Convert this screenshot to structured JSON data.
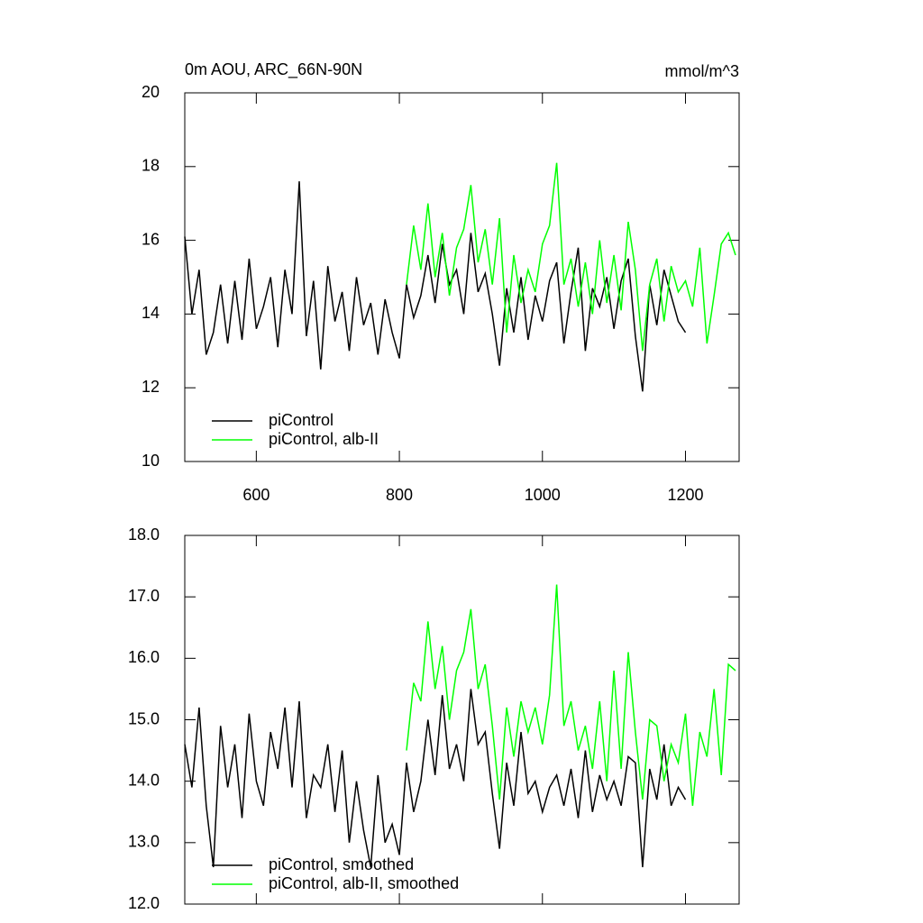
{
  "chart_data": [
    {
      "type": "line",
      "title": "0m AOU, ARC_66N-90N",
      "units": "mmol/m^3",
      "x": [
        500,
        510,
        520,
        530,
        540,
        550,
        560,
        570,
        580,
        590,
        600,
        610,
        620,
        630,
        640,
        650,
        660,
        670,
        680,
        690,
        700,
        710,
        720,
        730,
        740,
        750,
        760,
        770,
        780,
        790,
        800,
        810,
        820,
        830,
        840,
        850,
        860,
        870,
        880,
        890,
        900,
        910,
        920,
        930,
        940,
        950,
        960,
        970,
        980,
        990,
        1000,
        1010,
        1020,
        1030,
        1040,
        1050,
        1060,
        1070,
        1080,
        1090,
        1100,
        1110,
        1120,
        1130,
        1140,
        1150,
        1160,
        1170,
        1180,
        1190,
        1200,
        1210,
        1220,
        1230,
        1240,
        1250,
        1260,
        1270
      ],
      "series": [
        {
          "name": "piControl",
          "color": "#000000",
          "values": [
            16.1,
            14.0,
            15.2,
            12.9,
            13.5,
            14.8,
            13.2,
            14.9,
            13.3,
            15.5,
            13.6,
            14.2,
            15.0,
            13.1,
            15.2,
            14.0,
            17.6,
            13.4,
            14.9,
            12.5,
            15.3,
            13.8,
            14.6,
            13.0,
            15.0,
            13.7,
            14.3,
            12.9,
            14.4,
            13.5,
            12.8,
            14.8,
            13.9,
            14.5,
            15.6,
            14.3,
            15.9,
            14.8,
            15.2,
            14.0,
            16.2,
            14.6,
            15.1,
            14.0,
            12.6,
            14.7,
            13.5,
            15.0,
            13.3,
            14.5,
            13.8,
            14.9,
            15.4,
            13.2,
            14.6,
            15.8,
            13.0,
            14.7,
            14.2,
            15.0,
            13.6,
            14.9,
            15.5,
            13.4,
            11.9,
            14.8,
            13.7,
            15.2,
            14.5,
            13.8,
            13.5,
            null,
            null,
            null,
            null,
            null,
            null,
            null
          ]
        },
        {
          "name": "piControl, alb-II",
          "color": "#00ff00",
          "values": [
            null,
            null,
            null,
            null,
            null,
            null,
            null,
            null,
            null,
            null,
            null,
            null,
            null,
            null,
            null,
            null,
            null,
            null,
            null,
            null,
            null,
            null,
            null,
            null,
            null,
            null,
            null,
            null,
            null,
            null,
            null,
            14.8,
            16.4,
            15.2,
            17.0,
            15.0,
            16.2,
            14.5,
            15.8,
            16.3,
            17.5,
            15.4,
            16.3,
            14.8,
            16.6,
            13.5,
            15.6,
            14.3,
            15.2,
            14.6,
            15.9,
            16.4,
            18.1,
            14.8,
            15.5,
            14.2,
            15.4,
            14.0,
            16.0,
            14.3,
            15.6,
            14.1,
            16.5,
            15.2,
            13.0,
            14.8,
            15.5,
            13.8,
            15.3,
            14.6,
            14.9,
            14.2,
            15.8,
            13.2,
            14.5,
            15.9,
            16.2,
            15.6
          ]
        }
      ],
      "xlim": [
        500,
        1275
      ],
      "xticks": [
        600,
        800,
        1000,
        1200
      ],
      "ylim": [
        10,
        20
      ],
      "yticks": [
        10,
        12,
        14,
        16,
        18,
        20
      ]
    },
    {
      "type": "line",
      "x": [
        500,
        510,
        520,
        530,
        540,
        550,
        560,
        570,
        580,
        590,
        600,
        610,
        620,
        630,
        640,
        650,
        660,
        670,
        680,
        690,
        700,
        710,
        720,
        730,
        740,
        750,
        760,
        770,
        780,
        790,
        800,
        810,
        820,
        830,
        840,
        850,
        860,
        870,
        880,
        890,
        900,
        910,
        920,
        930,
        940,
        950,
        960,
        970,
        980,
        990,
        1000,
        1010,
        1020,
        1030,
        1040,
        1050,
        1060,
        1070,
        1080,
        1090,
        1100,
        1110,
        1120,
        1130,
        1140,
        1150,
        1160,
        1170,
        1180,
        1190,
        1200,
        1210,
        1220,
        1230,
        1240,
        1250,
        1260,
        1270
      ],
      "series": [
        {
          "name": "piControl, smoothed",
          "color": "#000000",
          "values": [
            14.6,
            13.9,
            15.2,
            13.6,
            12.6,
            14.9,
            13.9,
            14.6,
            13.4,
            15.1,
            14.0,
            13.6,
            14.8,
            14.2,
            15.2,
            13.9,
            15.3,
            13.4,
            14.1,
            13.9,
            14.6,
            13.5,
            14.5,
            13.0,
            14.0,
            13.2,
            12.6,
            14.1,
            13.0,
            13.3,
            12.8,
            14.3,
            13.5,
            14.0,
            15.0,
            14.1,
            15.4,
            14.2,
            14.6,
            14.0,
            15.5,
            14.6,
            14.8,
            13.8,
            12.9,
            14.3,
            13.6,
            14.8,
            13.8,
            14.0,
            13.5,
            13.9,
            14.1,
            13.6,
            14.2,
            13.4,
            14.5,
            13.5,
            14.1,
            13.7,
            14.0,
            13.6,
            14.4,
            14.3,
            12.6,
            14.2,
            13.7,
            14.6,
            13.6,
            13.9,
            13.7,
            null,
            null,
            null,
            null,
            null,
            null,
            null
          ]
        },
        {
          "name": "piControl, alb-II, smoothed",
          "color": "#00ff00",
          "values": [
            null,
            null,
            null,
            null,
            null,
            null,
            null,
            null,
            null,
            null,
            null,
            null,
            null,
            null,
            null,
            null,
            null,
            null,
            null,
            null,
            null,
            null,
            null,
            null,
            null,
            null,
            null,
            null,
            null,
            null,
            null,
            14.5,
            15.6,
            15.3,
            16.6,
            15.5,
            16.2,
            15.0,
            15.8,
            16.1,
            16.8,
            15.5,
            15.9,
            14.9,
            13.7,
            15.2,
            14.4,
            15.3,
            14.8,
            15.2,
            14.6,
            15.4,
            17.2,
            14.9,
            15.3,
            14.5,
            14.9,
            14.2,
            15.3,
            14.0,
            15.8,
            14.2,
            16.1,
            14.8,
            13.7,
            15.0,
            14.9,
            14.0,
            14.6,
            14.3,
            15.1,
            13.6,
            14.8,
            14.4,
            15.5,
            14.1,
            15.9,
            15.8
          ]
        }
      ],
      "xlim": [
        500,
        1275
      ],
      "xticks": [
        600,
        800,
        1000,
        1200
      ],
      "ylim": [
        12,
        18
      ],
      "yticks": [
        {
          "value": 12,
          "label": "12.0"
        },
        {
          "value": 13,
          "label": "13.0"
        },
        {
          "value": 14,
          "label": "14.0"
        },
        {
          "value": 15,
          "label": "15.0"
        },
        {
          "value": 16,
          "label": "16.0"
        },
        {
          "value": 17,
          "label": "17.0"
        },
        {
          "value": 18,
          "label": "18.0"
        }
      ]
    }
  ]
}
